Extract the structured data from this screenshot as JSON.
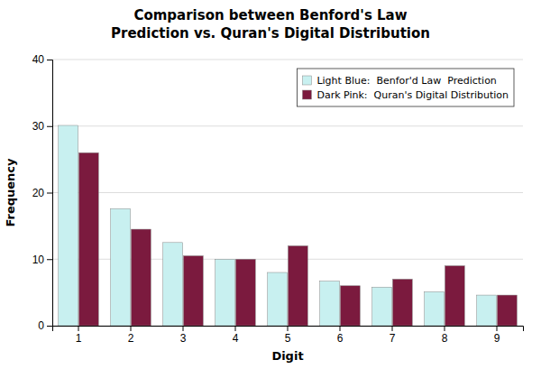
{
  "chart_data": {
    "type": "bar",
    "title": "Comparison between Benford's Law",
    "subtitle": "Prediction vs. Quran's Digital Distribution",
    "x_label": "Digit",
    "y_label": "Frequency",
    "categories": [
      "1",
      "2",
      "3",
      "4",
      "5",
      "6",
      "7",
      "8",
      "9"
    ],
    "series": [
      {
        "name": "Light Blue:  Benfor'd Law  Prediction",
        "color": "#c8f0f0",
        "values": [
          30.1,
          17.6,
          12.5,
          10.0,
          8.0,
          6.7,
          5.8,
          5.1,
          4.6
        ]
      },
      {
        "name": "Dark Pink:  Quran's Digital Distribution",
        "color": "#7b1a3e",
        "values": [
          26.0,
          14.5,
          10.5,
          10.0,
          12.0,
          6.0,
          7.0,
          9.0,
          4.6
        ]
      }
    ],
    "ylim": [
      0,
      40
    ],
    "yticks": [
      0,
      10,
      20,
      30,
      40
    ],
    "grid": true,
    "legend": "upper right"
  }
}
